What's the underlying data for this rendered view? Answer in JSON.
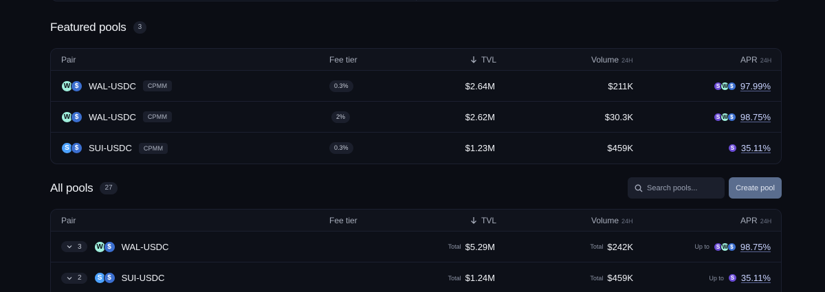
{
  "featured": {
    "title": "Featured pools",
    "count": "3",
    "headers": {
      "pair": "Pair",
      "fee": "Fee tier",
      "tvl": "TVL",
      "volume": "Volume",
      "volume_sub": "24H",
      "apr": "APR",
      "apr_sub": "24H"
    },
    "rows": [
      {
        "token_a": "W",
        "token_b": "$",
        "pair": "WAL-USDC",
        "type": "CPMM",
        "fee": "0.3%",
        "tvl": "$2.64M",
        "volume": "$211K",
        "apr": "97.99%"
      },
      {
        "token_a": "W",
        "token_b": "$",
        "pair": "WAL-USDC",
        "type": "CPMM",
        "fee": "2%",
        "tvl": "$2.62M",
        "volume": "$30.3K",
        "apr": "98.75%"
      },
      {
        "token_a": "S",
        "token_b": "$",
        "pair": "SUI-USDC",
        "type": "CPMM",
        "fee": "0.3%",
        "tvl": "$1.23M",
        "volume": "$459K",
        "apr": "35.11%"
      }
    ]
  },
  "all": {
    "title": "All pools",
    "count": "27",
    "search_placeholder": "Search pools...",
    "create_label": "Create pool",
    "headers": {
      "pair": "Pair",
      "fee": "Fee tier",
      "tvl": "TVL",
      "volume": "Volume",
      "volume_sub": "24H",
      "apr": "APR",
      "apr_sub": "24H"
    },
    "rows": [
      {
        "expand_count": "3",
        "pair": "WAL-USDC",
        "total_label": "Total",
        "tvl": "$5.29M",
        "volume": "$242K",
        "upto_label": "Up to",
        "apr": "98.75%"
      },
      {
        "expand_count": "2",
        "pair": "SUI-USDC",
        "total_label": "Total",
        "tvl": "$1.24M",
        "volume": "$459K",
        "upto_label": "Up to",
        "apr": "35.11%"
      }
    ]
  },
  "colors": {
    "background": "#0b0d14",
    "accent_link": "#c9d3ff",
    "wal": "#9ff0dd",
    "usdc": "#3b6fd0",
    "sui": "#4da2ff",
    "reward": "#6b4bd6",
    "create_button": "#5a6d8e"
  },
  "icons": [
    "arrow-down-icon",
    "search-icon",
    "chevron-down-icon",
    "wal-token-icon",
    "usdc-token-icon",
    "sui-token-icon",
    "reward-token-icon"
  ]
}
